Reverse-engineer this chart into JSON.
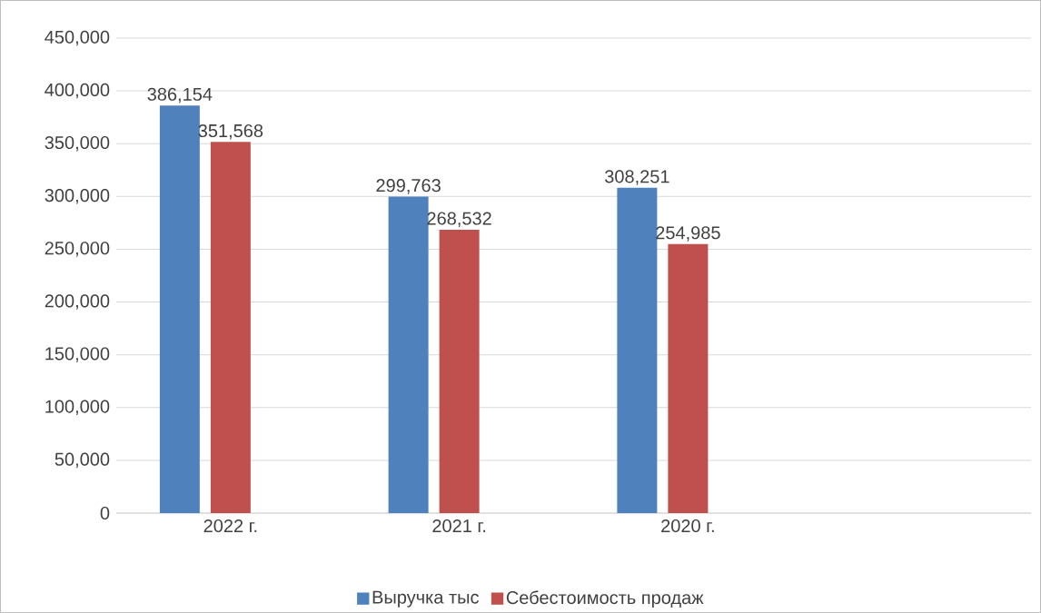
{
  "chart_data": {
    "type": "bar",
    "categories": [
      "2022 г.",
      "2021 г.",
      "2020 г.",
      null
    ],
    "series": [
      {
        "name": "Выручка тыс",
        "color": "#4f81bd",
        "values": [
          386154,
          299763,
          308251,
          null
        ],
        "value_labels": [
          "386,154",
          "299,763",
          "308,251",
          null
        ]
      },
      {
        "name": "Себестоимость продаж",
        "color": "#c0504d",
        "values": [
          351568,
          268532,
          254985,
          null
        ],
        "value_labels": [
          "351,568",
          "268,532",
          "254,985",
          null
        ]
      }
    ],
    "ylim": [
      0,
      450000
    ],
    "yticks": [
      0,
      {
        "value": 50000,
        "label": "50,000"
      },
      {
        "value": 100000,
        "label": "100,000"
      },
      {
        "value": 150000,
        "label": "150,000"
      },
      {
        "value": 200000,
        "label": "200,000"
      },
      {
        "value": 250000,
        "label": "250,000"
      },
      {
        "value": 300000,
        "label": "300,000"
      },
      {
        "value": 350000,
        "label": "350,000"
      },
      {
        "value": 400000,
        "label": "400,000"
      },
      {
        "value": 450000,
        "label": "450,000"
      }
    ],
    "grid": "y",
    "legend": "bottom"
  }
}
